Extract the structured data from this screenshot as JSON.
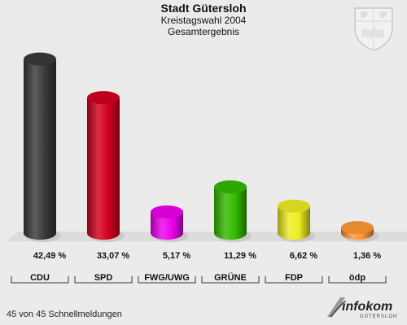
{
  "header": {
    "title": "Stadt Gütersloh",
    "subtitle1": "Kreistagswahl 2004",
    "subtitle2": "Gesamtergebnis"
  },
  "chart_data": {
    "type": "bar",
    "categories": [
      "CDU",
      "SPD",
      "FWG/UWG",
      "GRÜNE",
      "FDP",
      "ödp"
    ],
    "values": [
      42.49,
      33.07,
      5.17,
      11.29,
      6.62,
      1.36
    ],
    "value_labels": [
      "42,49 %",
      "33,07 %",
      "5,17 %",
      "11,29 %",
      "6,62 %",
      "1,36 %"
    ],
    "colors": [
      "#3a3a3a",
      "#d40020",
      "#ee00ee",
      "#33bb00",
      "#eeee22",
      "#ff9933"
    ],
    "ylim": [
      0,
      45
    ],
    "grid": false,
    "legend": "none"
  },
  "footer": {
    "status": "45 von 45 Schnellmeldungen",
    "logo_text": "infokom",
    "logo_subtext": "GÜTERSLOH"
  },
  "decor": {
    "crest_icon": "coat-of-arms-icon"
  }
}
